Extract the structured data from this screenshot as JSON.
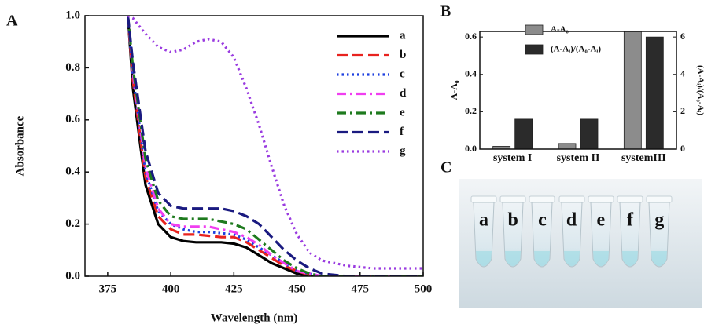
{
  "panel_labels": [
    "A",
    "B",
    "C"
  ],
  "photo_labels": [
    "a",
    "b",
    "c",
    "d",
    "e",
    "f",
    "g"
  ],
  "chart_data": [
    {
      "type": "line",
      "xlabel": "Wavelength (nm)",
      "ylabel": "Absorbance",
      "x": [
        383,
        385,
        390,
        395,
        400,
        405,
        410,
        415,
        420,
        425,
        430,
        435,
        440,
        445,
        450,
        455,
        460,
        470,
        480,
        490,
        500
      ],
      "xlim": [
        366,
        500
      ],
      "xticks": [
        375,
        400,
        425,
        450,
        475,
        500
      ],
      "ylim": [
        0,
        1
      ],
      "yticks": [
        {
          "value": 0,
          "label": "0.0"
        },
        {
          "value": 0.2,
          "label": "0.2"
        },
        {
          "value": 0.4,
          "label": "0.4"
        },
        {
          "value": 0.6,
          "label": "0.6"
        },
        {
          "value": 0.8,
          "label": "0.8"
        },
        {
          "value": 1,
          "label": "1.0"
        }
      ],
      "legend": "upper right",
      "series": [
        {
          "name": "a",
          "color": "#000000",
          "linestyle": "solid",
          "values": [
            1.0,
            0.72,
            0.35,
            0.2,
            0.15,
            0.135,
            0.13,
            0.13,
            0.13,
            0.125,
            0.11,
            0.08,
            0.05,
            0.03,
            0.01,
            0,
            0,
            0,
            0,
            0,
            0
          ]
        },
        {
          "name": "b",
          "color": "#e8231f",
          "linestyle": "dashed",
          "values": [
            1.0,
            0.75,
            0.38,
            0.23,
            0.18,
            0.16,
            0.16,
            0.155,
            0.15,
            0.15,
            0.13,
            0.1,
            0.07,
            0.04,
            0.02,
            0.005,
            0,
            0,
            0,
            0,
            0
          ]
        },
        {
          "name": "c",
          "color": "#1c3fe0",
          "linestyle": "dotted",
          "values": [
            1.0,
            0.77,
            0.4,
            0.25,
            0.2,
            0.18,
            0.17,
            0.17,
            0.165,
            0.16,
            0.14,
            0.11,
            0.08,
            0.05,
            0.02,
            0.01,
            0,
            0,
            0,
            0,
            0
          ]
        },
        {
          "name": "d",
          "color": "#f03ef0",
          "linestyle": "dashdot",
          "values": [
            1.0,
            0.78,
            0.42,
            0.26,
            0.2,
            0.19,
            0.19,
            0.19,
            0.18,
            0.17,
            0.15,
            0.12,
            0.08,
            0.05,
            0.02,
            0.01,
            0,
            0,
            0,
            0,
            0
          ]
        },
        {
          "name": "e",
          "color": "#1e7a1e",
          "linestyle": "dashdot",
          "values": [
            1.0,
            0.8,
            0.45,
            0.29,
            0.23,
            0.22,
            0.22,
            0.22,
            0.21,
            0.2,
            0.18,
            0.14,
            0.1,
            0.06,
            0.03,
            0.01,
            0,
            0,
            0,
            0,
            0
          ]
        },
        {
          "name": "f",
          "color": "#1a1a80",
          "linestyle": "dashed",
          "values": [
            1.0,
            0.82,
            0.48,
            0.32,
            0.27,
            0.26,
            0.26,
            0.26,
            0.26,
            0.25,
            0.23,
            0.2,
            0.15,
            0.1,
            0.06,
            0.03,
            0.01,
            0,
            0,
            0,
            0
          ]
        },
        {
          "name": "g",
          "color": "#9a3be0",
          "linestyle": "dotted",
          "values": [
            1.0,
            0.99,
            0.93,
            0.88,
            0.86,
            0.87,
            0.9,
            0.91,
            0.9,
            0.84,
            0.72,
            0.58,
            0.42,
            0.27,
            0.16,
            0.09,
            0.06,
            0.04,
            0.03,
            0.03,
            0.03
          ]
        }
      ]
    },
    {
      "type": "bar",
      "ylabel": "A-A₀",
      "y2label": "(A-Aᵢ)/(A₀-Aᵢ)",
      "categories": [
        "system I",
        "system II",
        "systemIII"
      ],
      "ylim": [
        0,
        0.63
      ],
      "yticks": [
        {
          "value": 0,
          "label": "0.0"
        },
        {
          "value": 0.2,
          "label": "0.2"
        },
        {
          "value": 0.4,
          "label": "0.4"
        },
        {
          "value": 0.6,
          "label": "0.6"
        }
      ],
      "y2lim": [
        0,
        6.3
      ],
      "y2ticks": [
        0,
        2,
        4,
        6
      ],
      "legend": "upper left",
      "series": [
        {
          "name": "A-A₀",
          "color": "#8c8c8c",
          "values": [
            0.015,
            0.03,
            0.65
          ]
        },
        {
          "name": "(A-Aᵢ)/(A₀-Aᵢ)",
          "color": "#2b2b2b",
          "axis": "y2",
          "values": [
            1.6,
            1.6,
            6.0
          ]
        }
      ]
    }
  ]
}
